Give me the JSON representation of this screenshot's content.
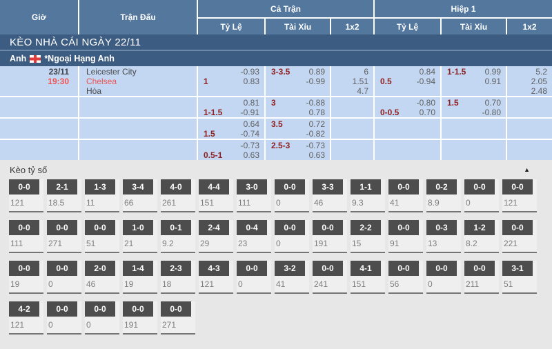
{
  "header": {
    "time_col": "Giờ",
    "match_col": "Trận Đấu",
    "full_match": "Cả Trận",
    "first_half": "Hiệp 1",
    "sub_cols": [
      "Tỷ Lệ",
      "Tài Xỉu",
      "1x2"
    ]
  },
  "banner": {
    "title": "KÈO NHÀ CÁI NGÀY 22/11"
  },
  "league": {
    "country": "Anh",
    "flag_icon": "england-flag",
    "name": "*Ngoại Hạng Anh"
  },
  "match": {
    "date": "23/11",
    "time": "19:30",
    "home": "Leicester City",
    "away": "Chelsea",
    "draw": "Hòa"
  },
  "odds_rows": [
    {
      "ft_hdp": {
        "line": "1",
        "odds": [
          "-0.93",
          "0.83"
        ]
      },
      "ft_ou": {
        "line": "3-3.5",
        "odds": [
          "0.89",
          "-0.99"
        ]
      },
      "ft_1x2": [
        "6",
        "1.51",
        "4.7"
      ],
      "h1_hdp": {
        "line": "0.5",
        "odds": [
          "0.84",
          "-0.94"
        ]
      },
      "h1_ou": {
        "line": "1-1.5",
        "odds": [
          "0.99",
          "0.91"
        ]
      },
      "h1_1x2": [
        "5.2",
        "2.05",
        "2.48"
      ]
    },
    {
      "ft_hdp": {
        "line": "1-1.5",
        "odds": [
          "0.81",
          "-0.91"
        ]
      },
      "ft_ou": {
        "line": "3",
        "odds": [
          "-0.88",
          "0.78"
        ]
      },
      "ft_1x2": [],
      "h1_hdp": {
        "line": "0-0.5",
        "odds": [
          "-0.80",
          "0.70"
        ]
      },
      "h1_ou": {
        "line": "1.5",
        "odds": [
          "0.70",
          "-0.80"
        ]
      },
      "h1_1x2": []
    },
    {
      "ft_hdp": {
        "line": "1.5",
        "odds": [
          "0.64",
          "-0.74"
        ]
      },
      "ft_ou": {
        "line": "3.5",
        "odds": [
          "0.72",
          "-0.82"
        ]
      },
      "ft_1x2": [],
      "h1_hdp": null,
      "h1_ou": null,
      "h1_1x2": []
    },
    {
      "ft_hdp": {
        "line": "0.5-1",
        "odds": [
          "-0.73",
          "0.63"
        ]
      },
      "ft_ou": {
        "line": "2.5-3",
        "odds": [
          "-0.73",
          "0.63"
        ]
      },
      "ft_1x2": [],
      "h1_hdp": null,
      "h1_ou": null,
      "h1_1x2": []
    }
  ],
  "score_section": {
    "title": "Kèo tỷ số",
    "collapse_icon": "▲",
    "rows": [
      [
        {
          "score": "0-0",
          "odds": "121"
        },
        {
          "score": "2-1",
          "odds": "18.5"
        },
        {
          "score": "1-3",
          "odds": "11"
        },
        {
          "score": "3-4",
          "odds": "66"
        },
        {
          "score": "4-0",
          "odds": "261"
        },
        {
          "score": "4-4",
          "odds": "151"
        },
        {
          "score": "3-0",
          "odds": "111"
        },
        {
          "score": "0-0",
          "odds": "0"
        },
        {
          "score": "3-3",
          "odds": "46"
        },
        {
          "score": "1-1",
          "odds": "9.3"
        },
        {
          "score": "0-0",
          "odds": "41"
        },
        {
          "score": "0-2",
          "odds": "8.9"
        },
        {
          "score": "0-0",
          "odds": "0"
        },
        {
          "score": "0-0",
          "odds": "121"
        }
      ],
      [
        {
          "score": "0-0",
          "odds": "111"
        },
        {
          "score": "0-0",
          "odds": "271"
        },
        {
          "score": "0-0",
          "odds": "51"
        },
        {
          "score": "1-0",
          "odds": "21"
        },
        {
          "score": "0-1",
          "odds": "9.2"
        },
        {
          "score": "2-4",
          "odds": "29"
        },
        {
          "score": "0-4",
          "odds": "23"
        },
        {
          "score": "0-0",
          "odds": "0"
        },
        {
          "score": "0-0",
          "odds": "191"
        },
        {
          "score": "2-2",
          "odds": "15"
        },
        {
          "score": "0-0",
          "odds": "91"
        },
        {
          "score": "0-3",
          "odds": "13"
        },
        {
          "score": "1-2",
          "odds": "8.2"
        },
        {
          "score": "0-0",
          "odds": "221"
        }
      ],
      [
        {
          "score": "0-0",
          "odds": "19"
        },
        {
          "score": "0-0",
          "odds": "0"
        },
        {
          "score": "2-0",
          "odds": "46"
        },
        {
          "score": "1-4",
          "odds": "19"
        },
        {
          "score": "2-3",
          "odds": "18"
        },
        {
          "score": "4-3",
          "odds": "121"
        },
        {
          "score": "0-0",
          "odds": "0"
        },
        {
          "score": "3-2",
          "odds": "41"
        },
        {
          "score": "0-0",
          "odds": "241"
        },
        {
          "score": "4-1",
          "odds": "151"
        },
        {
          "score": "0-0",
          "odds": "56"
        },
        {
          "score": "0-0",
          "odds": "0"
        },
        {
          "score": "0-0",
          "odds": "211"
        },
        {
          "score": "3-1",
          "odds": "51"
        }
      ],
      [
        {
          "score": "4-2",
          "odds": "121"
        },
        {
          "score": "0-0",
          "odds": "0"
        },
        {
          "score": "0-0",
          "odds": "0"
        },
        {
          "score": "0-0",
          "odds": "191"
        },
        {
          "score": "0-0",
          "odds": "271"
        }
      ]
    ]
  },
  "colors": {
    "header_blue": "#54779e",
    "banner_blue": "#3d5c82",
    "row_blue": "#c3d7f2",
    "line_maroon": "#8e2020",
    "odds_gray": "#5f5f5f",
    "accent_red": "#f05352",
    "score_box": "#4d4d4d"
  }
}
